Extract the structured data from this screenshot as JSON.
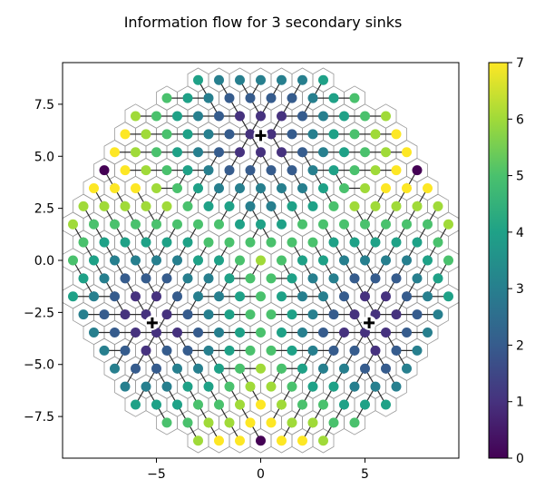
{
  "chart_data": {
    "type": "scatter",
    "title": "Information flow for 3 secondary sinks",
    "xlabel": "",
    "ylabel": "",
    "xlim": [
      -9.5,
      9.5
    ],
    "ylim": [
      -9.5,
      9.5
    ],
    "xticks": [
      -5,
      0,
      5
    ],
    "xtick_labels": [
      "−5",
      "0",
      "5"
    ],
    "yticks": [
      -7.5,
      -5.0,
      -2.5,
      0.0,
      2.5,
      5.0,
      7.5
    ],
    "ytick_labels": [
      "−7.5",
      "−5.0",
      "−2.5",
      "0.0",
      "2.5",
      "5.0",
      "7.5"
    ],
    "grid": false,
    "hex_lattice": {
      "spacing": 1.0,
      "radius": 9.2,
      "orientation": "pointy-top"
    },
    "sinks": [
      {
        "x": 0.0,
        "y": 6.0
      },
      {
        "x": -5.2,
        "y": -3.0
      },
      {
        "x": 5.2,
        "y": -3.0
      }
    ],
    "color_values": "hop count from nearest sink, repeating 0–7",
    "colormap": "viridis",
    "colorbar": {
      "min": 0,
      "max": 7,
      "ticks": [
        0,
        1,
        2,
        3,
        4,
        5,
        6,
        7
      ],
      "tick_labels": [
        "0",
        "1",
        "2",
        "3",
        "4",
        "5",
        "6",
        "7"
      ],
      "stops": [
        "#440154",
        "#46327e",
        "#365c8d",
        "#277f8e",
        "#1fa187",
        "#4ac16d",
        "#a0da39",
        "#fde725"
      ]
    },
    "colors": {
      "hex_edge": "#9a9a9a",
      "arrow": "#2b2b2b",
      "sink_marker": "#000000"
    }
  }
}
